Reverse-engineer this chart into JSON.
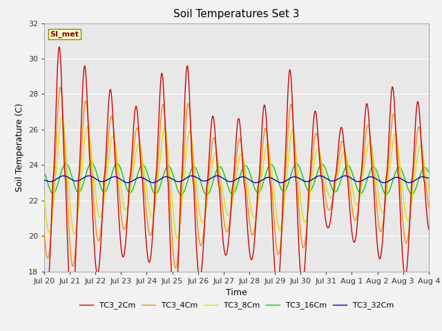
{
  "title": "Soil Temperatures Set 3",
  "xlabel": "Time",
  "ylabel": "Soil Temperature (C)",
  "ylim": [
    18,
    32
  ],
  "xlim": [
    0,
    15.0
  ],
  "yticks": [
    18,
    20,
    22,
    24,
    26,
    28,
    30,
    32
  ],
  "xtick_labels": [
    "Jul 20",
    "Jul 21",
    "Jul 22",
    "Jul 23",
    "Jul 24",
    "Jul 25",
    "Jul 26",
    "Jul 27",
    "Jul 28",
    "Jul 29",
    "Jul 30",
    "Jul 31",
    "Aug 1",
    "Aug 2",
    "Aug 3",
    "Aug 4"
  ],
  "fig_bg": "#f2f2f2",
  "plot_bg": "#e8e8e8",
  "series_colors": [
    "#cc0000",
    "#ff8800",
    "#dddd00",
    "#00cc00",
    "#0000cc"
  ],
  "series_names": [
    "TC3_2Cm",
    "TC3_4Cm",
    "TC3_8Cm",
    "TC3_16Cm",
    "TC3_32Cm"
  ],
  "annotation_text": "SI_met",
  "grid_color": "#ffffff",
  "lw": 1.0
}
